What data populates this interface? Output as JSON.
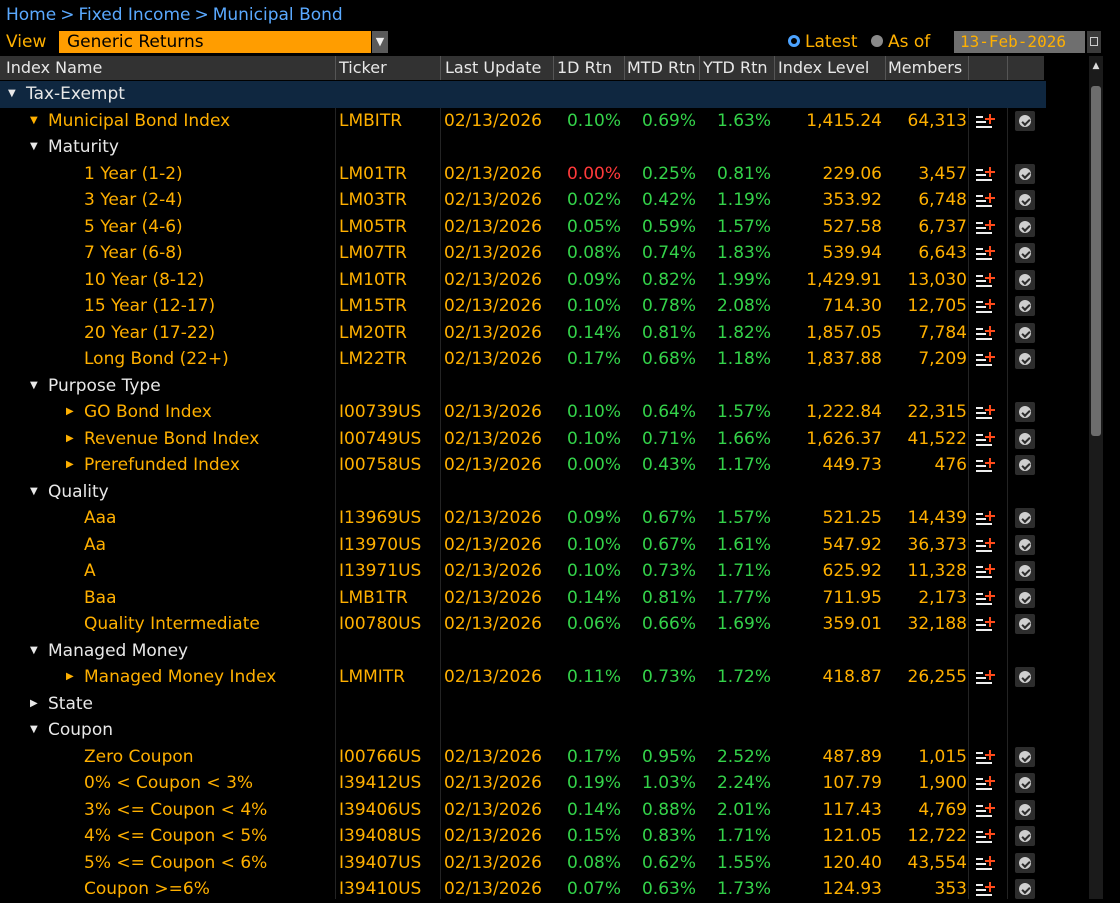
{
  "breadcrumb": {
    "items": [
      "Home",
      "Fixed Income",
      "Municipal Bond"
    ],
    "separator": ">"
  },
  "view": {
    "label": "View",
    "selected": "Generic Returns"
  },
  "date_mode": {
    "latest_label": "Latest",
    "as_of_label": "As of",
    "date": "13-Feb-2026",
    "selected": "Latest"
  },
  "columns": {
    "name": "Index Name",
    "ticker": "Ticker",
    "last_update": "Last Update",
    "d1": "1D Rtn",
    "mtd": "MTD Rtn",
    "ytd": "YTD Rtn",
    "level": "Index Level",
    "members": "Members"
  },
  "rows": [
    {
      "type": "group",
      "level": 0,
      "name": "Tax-Exempt",
      "expand": "down"
    },
    {
      "type": "data",
      "level": 1,
      "name": "Municipal Bond Index",
      "expand": "down",
      "ticker": "LMBITR",
      "date": "02/13/2026",
      "d1": "0.10%",
      "mtd": "0.69%",
      "ytd": "1.63%",
      "level_value": "1,415.24",
      "members": "64,313"
    },
    {
      "type": "header",
      "level": 1,
      "name": "Maturity",
      "expand": "down"
    },
    {
      "type": "data",
      "level": 2,
      "name": "1 Year (1-2)",
      "ticker": "LM01TR",
      "date": "02/13/2026",
      "d1": "0.00%",
      "d1_color": "neg",
      "mtd": "0.25%",
      "ytd": "0.81%",
      "level_value": "229.06",
      "members": "3,457"
    },
    {
      "type": "data",
      "level": 2,
      "name": "3 Year (2-4)",
      "ticker": "LM03TR",
      "date": "02/13/2026",
      "d1": "0.02%",
      "mtd": "0.42%",
      "ytd": "1.19%",
      "level_value": "353.92",
      "members": "6,748"
    },
    {
      "type": "data",
      "level": 2,
      "name": "5 Year (4-6)",
      "ticker": "LM05TR",
      "date": "02/13/2026",
      "d1": "0.05%",
      "mtd": "0.59%",
      "ytd": "1.57%",
      "level_value": "527.58",
      "members": "6,737"
    },
    {
      "type": "data",
      "level": 2,
      "name": "7 Year (6-8)",
      "ticker": "LM07TR",
      "date": "02/13/2026",
      "d1": "0.08%",
      "mtd": "0.74%",
      "ytd": "1.83%",
      "level_value": "539.94",
      "members": "6,643"
    },
    {
      "type": "data",
      "level": 2,
      "name": "10 Year (8-12)",
      "ticker": "LM10TR",
      "date": "02/13/2026",
      "d1": "0.09%",
      "mtd": "0.82%",
      "ytd": "1.99%",
      "level_value": "1,429.91",
      "members": "13,030"
    },
    {
      "type": "data",
      "level": 2,
      "name": "15 Year (12-17)",
      "ticker": "LM15TR",
      "date": "02/13/2026",
      "d1": "0.10%",
      "mtd": "0.78%",
      "ytd": "2.08%",
      "level_value": "714.30",
      "members": "12,705"
    },
    {
      "type": "data",
      "level": 2,
      "name": "20 Year (17-22)",
      "ticker": "LM20TR",
      "date": "02/13/2026",
      "d1": "0.14%",
      "mtd": "0.81%",
      "ytd": "1.82%",
      "level_value": "1,857.05",
      "members": "7,784"
    },
    {
      "type": "data",
      "level": 2,
      "name": "Long Bond (22+)",
      "ticker": "LM22TR",
      "date": "02/13/2026",
      "d1": "0.17%",
      "mtd": "0.68%",
      "ytd": "1.18%",
      "level_value": "1,837.88",
      "members": "7,209"
    },
    {
      "type": "header",
      "level": 1,
      "name": "Purpose Type",
      "expand": "down"
    },
    {
      "type": "data",
      "level": 2,
      "name": "GO Bond Index",
      "expand": "right",
      "ticker": "I00739US",
      "date": "02/13/2026",
      "d1": "0.10%",
      "mtd": "0.64%",
      "ytd": "1.57%",
      "level_value": "1,222.84",
      "members": "22,315"
    },
    {
      "type": "data",
      "level": 2,
      "name": "Revenue Bond Index",
      "expand": "right",
      "ticker": "I00749US",
      "date": "02/13/2026",
      "d1": "0.10%",
      "mtd": "0.71%",
      "ytd": "1.66%",
      "level_value": "1,626.37",
      "members": "41,522"
    },
    {
      "type": "data",
      "level": 2,
      "name": "Prerefunded Index",
      "expand": "right",
      "ticker": "I00758US",
      "date": "02/13/2026",
      "d1": "0.00%",
      "mtd": "0.43%",
      "ytd": "1.17%",
      "level_value": "449.73",
      "members": "476"
    },
    {
      "type": "header",
      "level": 1,
      "name": "Quality",
      "expand": "down"
    },
    {
      "type": "data",
      "level": 2,
      "name": "Aaa",
      "ticker": "I13969US",
      "date": "02/13/2026",
      "d1": "0.09%",
      "mtd": "0.67%",
      "ytd": "1.57%",
      "level_value": "521.25",
      "members": "14,439"
    },
    {
      "type": "data",
      "level": 2,
      "name": "Aa",
      "ticker": "I13970US",
      "date": "02/13/2026",
      "d1": "0.10%",
      "mtd": "0.67%",
      "ytd": "1.61%",
      "level_value": "547.92",
      "members": "36,373"
    },
    {
      "type": "data",
      "level": 2,
      "name": "A",
      "ticker": "I13971US",
      "date": "02/13/2026",
      "d1": "0.10%",
      "mtd": "0.73%",
      "ytd": "1.71%",
      "level_value": "625.92",
      "members": "11,328"
    },
    {
      "type": "data",
      "level": 2,
      "name": "Baa",
      "ticker": "LMB1TR",
      "date": "02/13/2026",
      "d1": "0.14%",
      "mtd": "0.81%",
      "ytd": "1.77%",
      "level_value": "711.95",
      "members": "2,173"
    },
    {
      "type": "data",
      "level": 2,
      "name": "Quality Intermediate",
      "ticker": "I00780US",
      "date": "02/13/2026",
      "d1": "0.06%",
      "mtd": "0.66%",
      "ytd": "1.69%",
      "level_value": "359.01",
      "members": "32,188"
    },
    {
      "type": "header",
      "level": 1,
      "name": "Managed Money",
      "expand": "down"
    },
    {
      "type": "data",
      "level": 2,
      "name": "Managed Money Index",
      "expand": "right",
      "ticker": "LMMITR",
      "date": "02/13/2026",
      "d1": "0.11%",
      "mtd": "0.73%",
      "ytd": "1.72%",
      "level_value": "418.87",
      "members": "26,255"
    },
    {
      "type": "header",
      "level": 1,
      "name": "State",
      "expand": "right"
    },
    {
      "type": "header",
      "level": 1,
      "name": "Coupon",
      "expand": "down"
    },
    {
      "type": "data",
      "level": 2,
      "name": "Zero Coupon",
      "ticker": "I00766US",
      "date": "02/13/2026",
      "d1": "0.17%",
      "mtd": "0.95%",
      "ytd": "2.52%",
      "level_value": "487.89",
      "members": "1,015"
    },
    {
      "type": "data",
      "level": 2,
      "name": "0% < Coupon < 3%",
      "ticker": "I39412US",
      "date": "02/13/2026",
      "d1": "0.19%",
      "mtd": "1.03%",
      "ytd": "2.24%",
      "level_value": "107.79",
      "members": "1,900"
    },
    {
      "type": "data",
      "level": 2,
      "name": "3% <= Coupon < 4%",
      "ticker": "I39406US",
      "date": "02/13/2026",
      "d1": "0.14%",
      "mtd": "0.88%",
      "ytd": "2.01%",
      "level_value": "117.43",
      "members": "4,769"
    },
    {
      "type": "data",
      "level": 2,
      "name": "4% <= Coupon < 5%",
      "ticker": "I39408US",
      "date": "02/13/2026",
      "d1": "0.15%",
      "mtd": "0.83%",
      "ytd": "1.71%",
      "level_value": "121.05",
      "members": "12,722"
    },
    {
      "type": "data",
      "level": 2,
      "name": "5% <= Coupon < 6%",
      "ticker": "I39407US",
      "date": "02/13/2026",
      "d1": "0.08%",
      "mtd": "0.62%",
      "ytd": "1.55%",
      "level_value": "120.40",
      "members": "43,554"
    },
    {
      "type": "data",
      "level": 2,
      "name": "Coupon >=6%",
      "ticker": "I39410US",
      "date": "02/13/2026",
      "d1": "0.07%",
      "mtd": "0.63%",
      "ytd": "1.73%",
      "level_value": "124.93",
      "members": "353"
    }
  ],
  "colors": {
    "orange": "#ffb000",
    "green": "#34d34a",
    "red": "#ff3a3a",
    "blue": "#5aa9ff",
    "group_bg": "#0f2740"
  },
  "icons": {
    "add": "add-to-list-icon",
    "chart": "chart-icon",
    "expand_down": "triangle-down-icon",
    "expand_right": "triangle-right-icon",
    "scroll_up": "scroll-up-arrow-icon"
  }
}
